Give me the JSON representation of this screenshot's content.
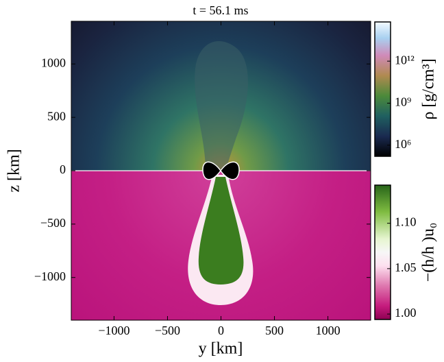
{
  "chart_data": {
    "type": "heatmap",
    "title": "t = 56.1 ms",
    "xlabel": "y [km]",
    "ylabel": "z [km]",
    "xlim": [
      -1400,
      1400
    ],
    "ylim": [
      -1400,
      1400
    ],
    "xticks": [
      {
        "value": -1000,
        "label": "−1000"
      },
      {
        "value": -500,
        "label": "−500"
      },
      0,
      500,
      1000
    ],
    "yticks": [
      {
        "value": -1000,
        "label": "−1000"
      },
      {
        "value": -500,
        "label": "−500"
      },
      0,
      500,
      1000
    ],
    "colorbars": [
      {
        "label": "ρ [g/cm³]",
        "scale": "log",
        "lim": [
          160000,
          630000000000000
        ],
        "ticks": [
          {
            "value": 1000000,
            "label": "10⁶"
          },
          {
            "value": 1000000000,
            "label": "10⁹"
          },
          {
            "value": 1000000000000,
            "label": "10¹²"
          }
        ]
      },
      {
        "label": "−(h/h  )u₀",
        "scale": "linear",
        "lim": [
          0.994,
          1.142
        ],
        "ticks": [
          {
            "value": 1,
            "label": "1.00"
          },
          1.05,
          {
            "value": 1.1,
            "label": "1.10"
          }
        ]
      }
    ]
  }
}
